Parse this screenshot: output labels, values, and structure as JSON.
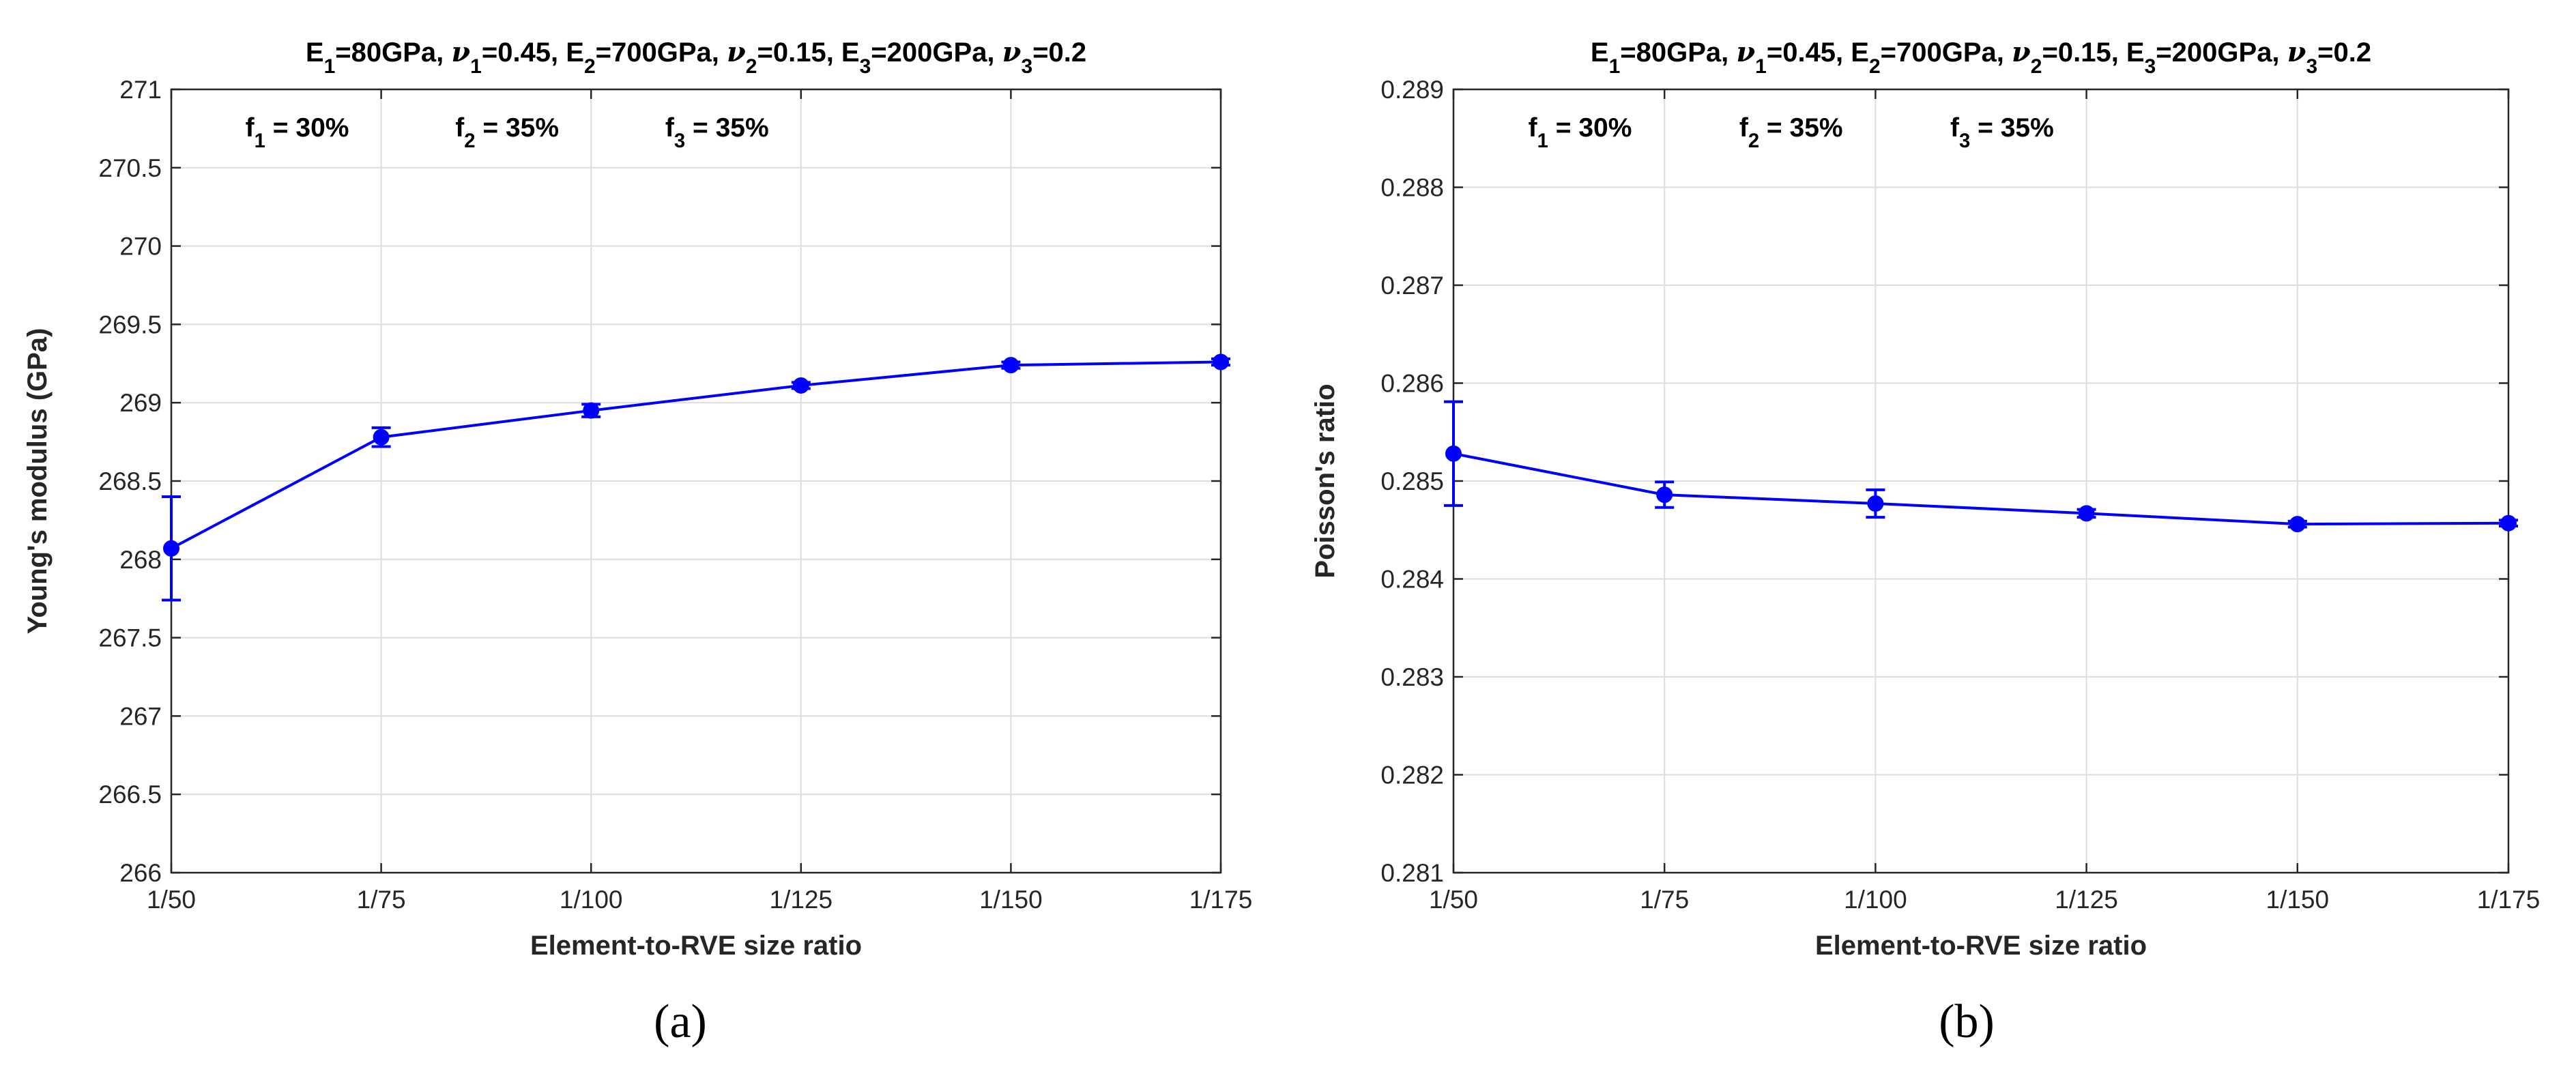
{
  "chart_data": [
    {
      "type": "line",
      "panel_label": "(a)",
      "title": {
        "prefix": "",
        "parts": [
          {
            "t": "E"
          },
          {
            "t": "1",
            "sub": true
          },
          {
            "t": "=80GPa, "
          },
          {
            "t": "ν",
            "italic": true
          },
          {
            "t": "1",
            "sub": true
          },
          {
            "t": "=0.45,  E"
          },
          {
            "t": "2",
            "sub": true
          },
          {
            "t": "=700GPa, "
          },
          {
            "t": "ν",
            "italic": true
          },
          {
            "t": "2",
            "sub": true
          },
          {
            "t": "=0.15,  E"
          },
          {
            "t": "3",
            "sub": true
          },
          {
            "t": "=200GPa, "
          },
          {
            "t": "ν",
            "italic": true
          },
          {
            "t": "3",
            "sub": true
          },
          {
            "t": "=0.2"
          }
        ]
      },
      "annotations": [
        {
          "x": 1.6,
          "parts": [
            {
              "t": "f"
            },
            {
              "t": "1",
              "sub": true
            },
            {
              "t": " = 30%"
            }
          ]
        },
        {
          "x": 2.6,
          "parts": [
            {
              "t": "f"
            },
            {
              "t": "2",
              "sub": true
            },
            {
              "t": " = 35%"
            }
          ]
        },
        {
          "x": 3.6,
          "parts": [
            {
              "t": "f"
            },
            {
              "t": "3",
              "sub": true
            },
            {
              "t": " = 35%"
            }
          ]
        }
      ],
      "xlabel": "Element-to-RVE size ratio",
      "ylabel": "Young's modulus (GPa)",
      "categories": [
        "1/50",
        "1/75",
        "1/100",
        "1/125",
        "1/150",
        "1/175"
      ],
      "xlim": [
        1,
        6
      ],
      "ylim": [
        266,
        271
      ],
      "yticks": [
        266,
        266.5,
        267,
        267.5,
        268,
        268.5,
        269,
        269.5,
        270,
        270.5,
        271
      ],
      "ytick_labels": [
        "266",
        "266.5",
        "267",
        "267.5",
        "268",
        "268.5",
        "269",
        "269.5",
        "270",
        "270.5",
        "271"
      ],
      "grid": true,
      "series": [
        {
          "name": "Young's modulus",
          "color": "#0000ff",
          "x": [
            1,
            2,
            3,
            4,
            5,
            6
          ],
          "values": [
            268.07,
            268.78,
            268.95,
            269.11,
            269.24,
            269.26
          ],
          "errors": [
            0.33,
            0.06,
            0.04,
            0.02,
            0.02,
            0.02
          ]
        }
      ]
    },
    {
      "type": "line",
      "panel_label": "(b)",
      "title": {
        "prefix": "",
        "parts": [
          {
            "t": "E"
          },
          {
            "t": "1",
            "sub": true
          },
          {
            "t": "=80GPa, "
          },
          {
            "t": "ν",
            "italic": true
          },
          {
            "t": "1",
            "sub": true
          },
          {
            "t": "=0.45,  E"
          },
          {
            "t": "2",
            "sub": true
          },
          {
            "t": "=700GPa, "
          },
          {
            "t": "ν",
            "italic": true
          },
          {
            "t": "2",
            "sub": true
          },
          {
            "t": "=0.15,  E"
          },
          {
            "t": "3",
            "sub": true
          },
          {
            "t": "=200GPa, "
          },
          {
            "t": "ν",
            "italic": true
          },
          {
            "t": "3",
            "sub": true
          },
          {
            "t": "=0.2"
          }
        ]
      },
      "annotations": [
        {
          "x": 1.6,
          "parts": [
            {
              "t": "f"
            },
            {
              "t": "1",
              "sub": true
            },
            {
              "t": " = 30%"
            }
          ]
        },
        {
          "x": 2.6,
          "parts": [
            {
              "t": "f"
            },
            {
              "t": "2",
              "sub": true
            },
            {
              "t": " = 35%"
            }
          ]
        },
        {
          "x": 3.6,
          "parts": [
            {
              "t": "f"
            },
            {
              "t": "3",
              "sub": true
            },
            {
              "t": " = 35%"
            }
          ]
        }
      ],
      "xlabel": "Element-to-RVE size ratio",
      "ylabel": "Poisson's ratio",
      "categories": [
        "1/50",
        "1/75",
        "1/100",
        "1/125",
        "1/150",
        "1/175"
      ],
      "xlim": [
        1,
        6
      ],
      "ylim": [
        0.281,
        0.289
      ],
      "yticks": [
        0.281,
        0.282,
        0.283,
        0.284,
        0.285,
        0.286,
        0.287,
        0.288,
        0.289
      ],
      "ytick_labels": [
        "0.281",
        "0.282",
        "0.283",
        "0.284",
        "0.285",
        "0.286",
        "0.287",
        "0.288",
        "0.289"
      ],
      "grid": true,
      "series": [
        {
          "name": "Poisson's ratio",
          "color": "#0000ff",
          "x": [
            1,
            2,
            3,
            4,
            5,
            6
          ],
          "values": [
            0.28528,
            0.28486,
            0.28477,
            0.28467,
            0.28456,
            0.28457
          ],
          "errors": [
            0.00053,
            0.00013,
            0.00014,
            4e-05,
            3e-05,
            3e-05
          ]
        }
      ]
    }
  ]
}
